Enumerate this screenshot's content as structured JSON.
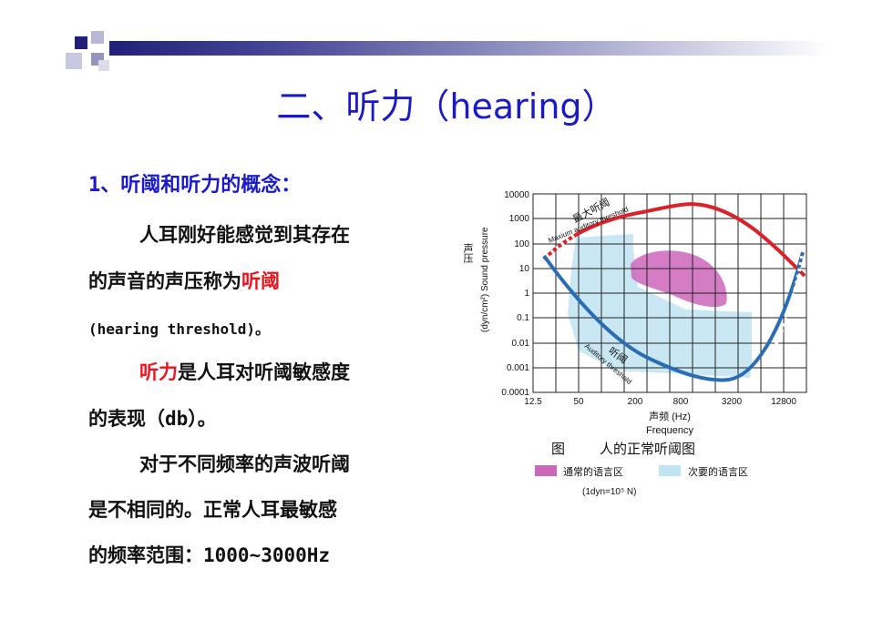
{
  "slide": {
    "title": "二、听力（hearing）",
    "heading": "1、听阈和听力的概念：",
    "p1_line1": "人耳刚好能感觉到其存在",
    "p1_line2_a": "的声音的声压称为",
    "p1_line2_b": "听阈",
    "p1_line3": "(hearing threshold)。",
    "p2_line1_a": "听力",
    "p2_line1_b": "是人耳对听阈敏感度",
    "p2_line2": "的表现（db）。",
    "p3_line1": "对于不同频率的声波听阈",
    "p3_line2": "是不相同的。正常人耳最敏感",
    "p3_line3": "的频率范围：1000~3000Hz"
  },
  "figure": {
    "y_ticks": [
      "10000",
      "1000",
      "100",
      "10",
      "1",
      "0.1",
      "0.01",
      "0.001",
      "0.0001"
    ],
    "x_ticks": [
      "12.5",
      "50",
      "200",
      "800",
      "3200",
      "12800"
    ],
    "y_label_cn": "声压",
    "y_label_en": "(dyn/cm²) Sound pressure",
    "x_label_cn": "声频 (Hz)",
    "x_label_en": "Frequency",
    "max_label_cn": "最大听阈",
    "max_label_en": "Maxium auditory threshold",
    "min_label_cn": "听阈",
    "min_label_en": "Auditory threshold",
    "caption_prefix": "图",
    "caption": "人的正常听阈图",
    "legend_common": "通常的语言区",
    "legend_secondary": "次要的语言区",
    "unit_note": "(1dyn=10⁵ N)",
    "colors": {
      "max_curve": "#d8232a",
      "min_curve": "#2a6db5",
      "common_zone": "#cc66bb",
      "secondary_zone": "#bfe4f2"
    }
  }
}
